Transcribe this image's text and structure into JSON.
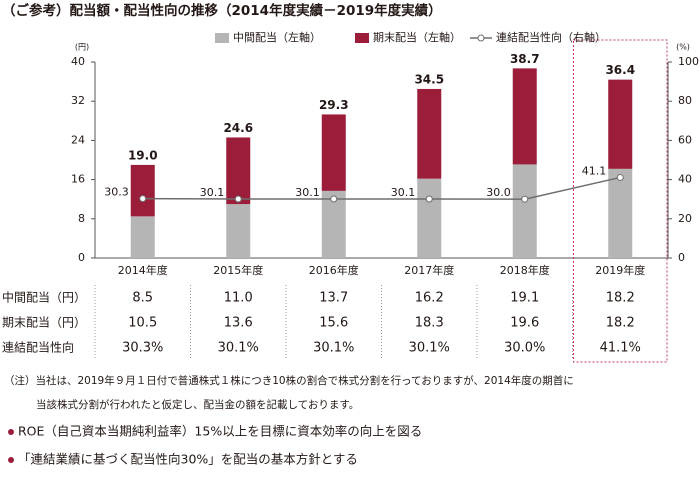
{
  "chart_data": {
    "type": "bar",
    "stacked": true,
    "title": "（ご参考）配当額・配当性向の推移（2014年度実績－2019年度実績）",
    "y_unit": "(円)",
    "y2_unit": "(%)",
    "categories": [
      "2014年度",
      "2015年度",
      "2016年度",
      "2017年度",
      "2018年度",
      "2019年度"
    ],
    "series": [
      {
        "name": "中間配当（左軸）",
        "color": "#b5b5b5",
        "values": [
          8.5,
          11.0,
          13.7,
          16.2,
          19.1,
          18.2
        ]
      },
      {
        "name": "期末配当（左軸）",
        "color": "#9b1d3a",
        "values": [
          10.5,
          13.6,
          15.6,
          18.3,
          19.6,
          18.2
        ]
      },
      {
        "name": "連結配当性向（右軸）",
        "type": "line",
        "axis": "y2",
        "color": "#6e6e6e",
        "values": [
          30.3,
          30.1,
          30.1,
          30.1,
          30.0,
          41.1
        ],
        "value_labels": [
          "30.3",
          "30.1",
          "30.1",
          "30.1",
          "30.0",
          "41.1"
        ]
      }
    ],
    "totals": [
      19.0,
      24.6,
      29.3,
      34.5,
      38.7,
      36.4
    ],
    "total_labels": [
      "19.0",
      "24.6",
      "29.3",
      "34.5",
      "38.7",
      "36.4"
    ],
    "ylim": [
      0,
      40
    ],
    "yticks": [
      0,
      8,
      16,
      24,
      32,
      40
    ],
    "y2lim": [
      0,
      100
    ],
    "y2ticks": [
      0,
      20,
      40,
      60,
      80,
      100
    ],
    "highlight": "2019年度",
    "grid": false
  },
  "table": {
    "rows": [
      {
        "label": "中間配当（円）",
        "cells": [
          "8.5",
          "11.0",
          "13.7",
          "16.2",
          "19.1",
          "18.2"
        ]
      },
      {
        "label": "期末配当（円）",
        "cells": [
          "10.5",
          "13.6",
          "15.6",
          "18.3",
          "19.6",
          "18.2"
        ]
      },
      {
        "label": "連結配当性向",
        "cells": [
          "30.3%",
          "30.1%",
          "30.1%",
          "30.1%",
          "30.0%",
          "41.1%"
        ]
      }
    ]
  },
  "notes": [
    "（注）当社は、2019年９月１日付で普通株式１株につき10株の割合で株式分割を行っておりますが、2014年度の期首に",
    "当該株式分割が行われたと仮定し、配当金の額を記載しております。"
  ],
  "policies": [
    "ROE（自己資本当期純利益率）15%以上を目標に資本効率の向上を図る",
    "「連結業績に基づく配当性向30%」を配当の基本方針とする"
  ]
}
